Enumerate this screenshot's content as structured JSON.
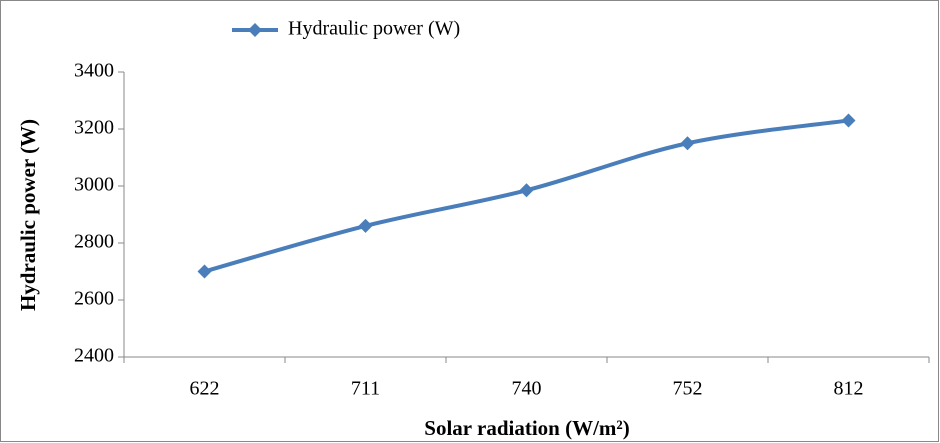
{
  "chart_data": {
    "type": "line",
    "x_label": "Solar radiation (W/m²)",
    "y_label": "Hydraulic power (W)",
    "categories": [
      "622",
      "711",
      "740",
      "752",
      "812"
    ],
    "series": [
      {
        "name": "Hydraulic power (W)",
        "color": "#4a7ebb",
        "values": [
          2700,
          2860,
          2985,
          3150,
          3230
        ]
      }
    ],
    "ylim": [
      2400,
      3400
    ],
    "yticks": [
      2400,
      2600,
      2800,
      3000,
      3200,
      3400
    ],
    "grid": false,
    "smooth": true,
    "legend": "top"
  }
}
